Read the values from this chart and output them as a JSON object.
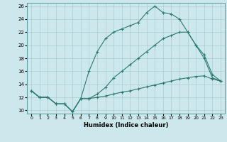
{
  "title": "",
  "xlabel": "Humidex (Indice chaleur)",
  "xlim": [
    -0.5,
    23.5
  ],
  "ylim": [
    9.5,
    26.5
  ],
  "xticks": [
    0,
    1,
    2,
    3,
    4,
    5,
    6,
    7,
    8,
    9,
    10,
    11,
    12,
    13,
    14,
    15,
    16,
    17,
    18,
    19,
    20,
    21,
    22,
    23
  ],
  "yticks": [
    10,
    12,
    14,
    16,
    18,
    20,
    22,
    24,
    26
  ],
  "background_color": "#cce8ec",
  "line_color": "#2a7a70",
  "grid_color": "#aacdd4",
  "line1_x": [
    0,
    1,
    2,
    3,
    4,
    5,
    6,
    7,
    8,
    9,
    10,
    11,
    12,
    13,
    14,
    15,
    16,
    17,
    18,
    19,
    20,
    21,
    22,
    23
  ],
  "line1_y": [
    13,
    12,
    12,
    11,
    11,
    9.8,
    11.8,
    16,
    19,
    21,
    22,
    22.5,
    23,
    23.5,
    25,
    26,
    25,
    24.8,
    24,
    22,
    20,
    18,
    15,
    14.5
  ],
  "line2_x": [
    0,
    1,
    2,
    3,
    4,
    5,
    6,
    7,
    8,
    9,
    10,
    11,
    12,
    13,
    14,
    15,
    16,
    17,
    18,
    19,
    20,
    21,
    22,
    23
  ],
  "line2_y": [
    13,
    12,
    12,
    11,
    11,
    9.8,
    11.8,
    11.8,
    12,
    12.2,
    12.5,
    12.8,
    13,
    13.3,
    13.6,
    13.9,
    14.2,
    14.5,
    14.8,
    15.0,
    15.2,
    15.3,
    14.8,
    14.5
  ],
  "line3_x": [
    0,
    1,
    2,
    3,
    4,
    5,
    6,
    7,
    8,
    9,
    10,
    11,
    12,
    13,
    14,
    15,
    16,
    17,
    18,
    19,
    20,
    21,
    22,
    23
  ],
  "line3_y": [
    13,
    12,
    12,
    11,
    11,
    9.8,
    11.8,
    11.8,
    12.5,
    13.5,
    15,
    16,
    17,
    18,
    19,
    20,
    21,
    21.5,
    22,
    22,
    20,
    18.5,
    15.5,
    14.5
  ]
}
